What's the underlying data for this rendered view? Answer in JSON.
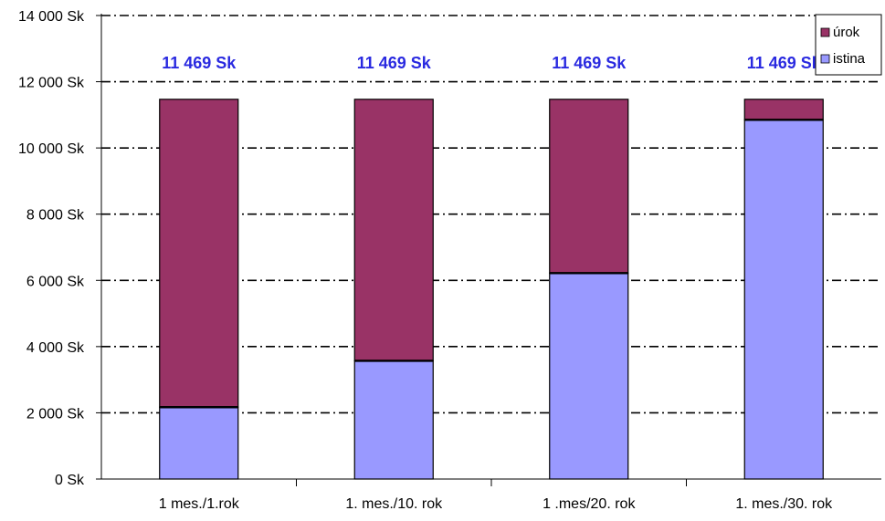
{
  "chart_data": {
    "type": "bar",
    "stacked": true,
    "categories": [
      "1 mes./1.rok",
      "1. mes./10. rok",
      "1 .mes/20. rok",
      "1. mes./30. rok"
    ],
    "series": [
      {
        "name": "istina",
        "values": [
          2170,
          3570,
          6220,
          10850
        ],
        "color": "#9999ff"
      },
      {
        "name": "úrok",
        "values": [
          9299,
          7899,
          5249,
          619
        ],
        "color": "#993366"
      }
    ],
    "totals": [
      "11 469 Sk",
      "11 469 Sk",
      "11 469 Sk",
      "11 469 Sk"
    ],
    "yticks": [
      "0 Sk",
      "2 000 Sk",
      "4 000 Sk",
      "6 000 Sk",
      "8 000 Sk",
      "10 000 Sk",
      "12 000 Sk",
      "14 000 Sk"
    ],
    "ylim": [
      0,
      14000
    ],
    "ystep": 2000,
    "grid": true,
    "legend": {
      "placement": "top-right",
      "order": [
        "úrok",
        "istina"
      ]
    },
    "colors": {
      "total_label": "#2a2ae0"
    }
  }
}
